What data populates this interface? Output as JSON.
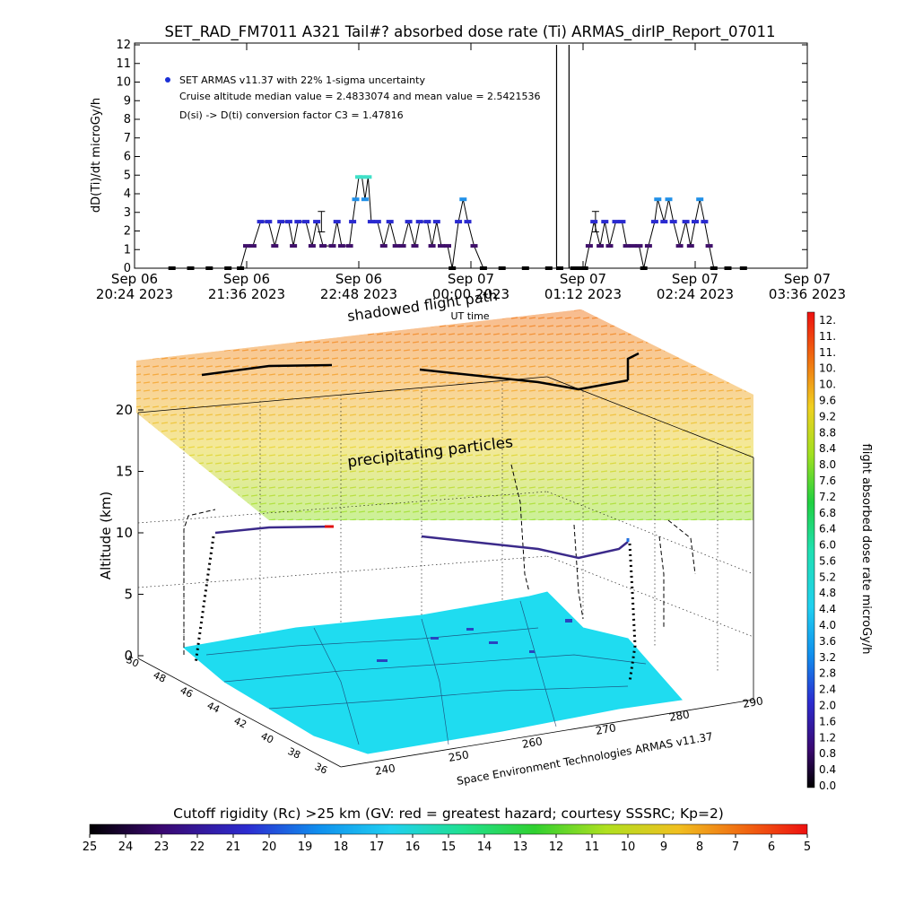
{
  "header": {
    "title": "SET_RAD_FM7011  A321 Tail#? absorbed dose rate (Ti) ARMAS_dirIP_Report_07011"
  },
  "top_chart": {
    "ylabel": "dD(Ti)/dt microGy/h",
    "xlabel": "UT time",
    "legend_symbol_color": "#1a2fd6",
    "notes": [
      "SET ARMAS v11.37 with 22% 1-sigma uncertainty",
      "Cruise altitude median value = 2.4833074 and mean value = 2.5421536",
      "D(si) -> D(ti) conversion factor C3 = 1.47816"
    ],
    "y_ticks": [
      "0",
      "1",
      "2",
      "3",
      "4",
      "5",
      "6",
      "7",
      "8",
      "9",
      "10",
      "11",
      "12"
    ],
    "x_ticks": [
      {
        "l1": "Sep 06",
        "l2": "20:24 2023"
      },
      {
        "l1": "Sep 06",
        "l2": "21:36 2023"
      },
      {
        "l1": "Sep 06",
        "l2": "22:48 2023"
      },
      {
        "l1": "Sep 07",
        "l2": "00:00 2023"
      },
      {
        "l1": "Sep 07",
        "l2": "01:12 2023"
      },
      {
        "l1": "Sep 07",
        "l2": "02:24 2023"
      },
      {
        "l1": "Sep 07",
        "l2": "03:36 2023"
      }
    ]
  },
  "scene": {
    "shadow_label": "shadowed flight path",
    "particles_label": "precipitating particles",
    "altitude_label": "Altitude (km)",
    "alt_ticks": [
      "0",
      "5",
      "10",
      "15",
      "20"
    ],
    "lat_ticks": [
      "50",
      "48",
      "46",
      "44",
      "42",
      "40",
      "38",
      "36"
    ],
    "lon_ticks": [
      "240",
      "250",
      "260",
      "270",
      "280",
      "290"
    ],
    "credit": "Space Environment Technologies ARMAS v11.37",
    "surface_color": "#1fdcf0",
    "path_color": "#000000"
  },
  "colorbar_right": {
    "label": "flight absorbed dose rate microGy/h",
    "ticks": [
      "12.",
      "11.",
      "11.",
      "10.",
      "10.",
      "9.6",
      "9.2",
      "8.8",
      "8.4",
      "8.0",
      "7.6",
      "7.2",
      "6.8",
      "6.4",
      "6.0",
      "5.6",
      "5.2",
      "4.8",
      "4.4",
      "4.0",
      "3.6",
      "3.2",
      "2.8",
      "2.4",
      "2.0",
      "1.6",
      "1.2",
      "0.8",
      "0.4",
      "0.0"
    ]
  },
  "colorbar_bottom": {
    "label": "Cutoff rigidity (Rc) >25 km (GV: red = greatest hazard; courtesy SSSRC; Kp=2)",
    "ticks": [
      "25",
      "24",
      "23",
      "22",
      "21",
      "20",
      "19",
      "18",
      "17",
      "16",
      "15",
      "14",
      "13",
      "12",
      "11",
      "10",
      "9",
      "8",
      "7",
      "6",
      "5"
    ]
  },
  "chart_data": {
    "type": "scatter",
    "title": "SET_RAD_FM7011  A321 Tail#? absorbed dose rate (Ti) ARMAS_dirIP_Report_07011",
    "xlabel": "UT time",
    "ylabel": "dD(Ti)/dt microGy/h",
    "ylim": [
      0,
      12
    ],
    "xlim": [
      "2023-09-06 20:24",
      "2023-09-07 03:36"
    ],
    "grid": false,
    "legend_position": "top-left",
    "series": [
      {
        "name": "SET ARMAS v11.37 with 22% 1-sigma uncertainty",
        "points": [
          [
            "2023-09-06 20:48",
            0.0
          ],
          [
            "2023-09-06 21:00",
            0.0
          ],
          [
            "2023-09-06 21:12",
            0.0
          ],
          [
            "2023-09-06 21:24",
            0.0
          ],
          [
            "2023-09-06 21:32",
            0.0
          ],
          [
            "2023-09-06 21:36",
            1.2
          ],
          [
            "2023-09-06 21:40",
            1.2
          ],
          [
            "2023-09-06 21:45",
            2.5
          ],
          [
            "2023-09-06 21:50",
            2.5
          ],
          [
            "2023-09-06 21:54",
            1.2
          ],
          [
            "2023-09-06 21:58",
            2.5
          ],
          [
            "2023-09-06 22:03",
            2.5
          ],
          [
            "2023-09-06 22:06",
            1.2
          ],
          [
            "2023-09-06 22:09",
            2.5
          ],
          [
            "2023-09-06 22:14",
            2.5
          ],
          [
            "2023-09-06 22:18",
            1.2
          ],
          [
            "2023-09-06 22:21",
            2.5
          ],
          [
            "2023-09-06 22:25",
            1.2
          ],
          [
            "2023-09-06 22:31",
            1.2
          ],
          [
            "2023-09-06 22:34",
            2.5
          ],
          [
            "2023-09-06 22:37",
            1.2
          ],
          [
            "2023-09-06 22:42",
            1.2
          ],
          [
            "2023-09-06 22:44",
            2.5
          ],
          [
            "2023-09-06 22:46",
            3.7
          ],
          [
            "2023-09-06 22:48",
            4.9
          ],
          [
            "2023-09-06 22:50",
            4.9
          ],
          [
            "2023-09-06 22:52",
            3.7
          ],
          [
            "2023-09-06 22:54",
            4.9
          ],
          [
            "2023-09-06 22:56",
            2.5
          ],
          [
            "2023-09-06 23:00",
            2.5
          ],
          [
            "2023-09-06 23:04",
            1.2
          ],
          [
            "2023-09-06 23:08",
            2.5
          ],
          [
            "2023-09-06 23:12",
            1.2
          ],
          [
            "2023-09-06 23:16",
            1.2
          ],
          [
            "2023-09-06 23:20",
            2.5
          ],
          [
            "2023-09-06 23:24",
            1.2
          ],
          [
            "2023-09-06 23:27",
            2.5
          ],
          [
            "2023-09-06 23:32",
            2.5
          ],
          [
            "2023-09-06 23:35",
            1.2
          ],
          [
            "2023-09-06 23:38",
            2.5
          ],
          [
            "2023-09-06 23:41",
            1.2
          ],
          [
            "2023-09-06 23:45",
            1.2
          ],
          [
            "2023-09-06 23:48",
            0.0
          ],
          [
            "2023-09-06 23:52",
            2.5
          ],
          [
            "2023-09-06 23:55",
            3.7
          ],
          [
            "2023-09-06 23:58",
            2.5
          ],
          [
            "2023-09-07 00:02",
            1.2
          ],
          [
            "2023-09-07 00:08",
            0.0
          ],
          [
            "2023-09-07 00:20",
            0.0
          ],
          [
            "2023-09-07 00:35",
            0.0
          ],
          [
            "2023-09-07 00:50",
            0.0
          ],
          [
            "2023-09-07 00:57",
            0.0
          ],
          [
            "2023-09-07 01:06",
            0.0
          ],
          [
            "2023-09-07 01:10",
            0.0
          ],
          [
            "2023-09-07 01:13",
            0.0
          ],
          [
            "2023-09-07 01:16",
            1.2
          ],
          [
            "2023-09-07 01:19",
            2.5
          ],
          [
            "2023-09-07 01:23",
            1.2
          ],
          [
            "2023-09-07 01:26",
            2.5
          ],
          [
            "2023-09-07 01:29",
            1.2
          ],
          [
            "2023-09-07 01:33",
            2.5
          ],
          [
            "2023-09-07 01:37",
            2.5
          ],
          [
            "2023-09-07 01:40",
            1.2
          ],
          [
            "2023-09-07 01:44",
            1.2
          ],
          [
            "2023-09-07 01:48",
            1.2
          ],
          [
            "2023-09-07 01:51",
            0.0
          ],
          [
            "2023-09-07 01:54",
            1.2
          ],
          [
            "2023-09-07 01:58",
            2.5
          ],
          [
            "2023-09-07 02:00",
            3.7
          ],
          [
            "2023-09-07 02:04",
            2.5
          ],
          [
            "2023-09-07 02:07",
            3.7
          ],
          [
            "2023-09-07 02:10",
            2.5
          ],
          [
            "2023-09-07 02:14",
            1.2
          ],
          [
            "2023-09-07 02:18",
            2.5
          ],
          [
            "2023-09-07 02:21",
            1.2
          ],
          [
            "2023-09-07 02:24",
            2.5
          ],
          [
            "2023-09-07 02:27",
            3.7
          ],
          [
            "2023-09-07 02:30",
            2.5
          ],
          [
            "2023-09-07 02:33",
            1.2
          ],
          [
            "2023-09-07 02:36",
            0.0
          ],
          [
            "2023-09-07 02:45",
            0.0
          ],
          [
            "2023-09-07 02:55",
            0.0
          ]
        ]
      }
    ],
    "annotations": [
      {
        "type": "error_bar",
        "x": "2023-09-06 22:24",
        "center": 2.5,
        "half_width": 0.55
      },
      {
        "type": "error_bar",
        "x": "2023-09-07 01:20",
        "center": 2.5,
        "half_width": 0.55
      },
      {
        "type": "vertical_line",
        "x": "2023-09-07 00:55",
        "from": 0,
        "to": 12
      },
      {
        "type": "vertical_line",
        "x": "2023-09-07 01:03",
        "from": 0,
        "to": 12
      }
    ]
  }
}
